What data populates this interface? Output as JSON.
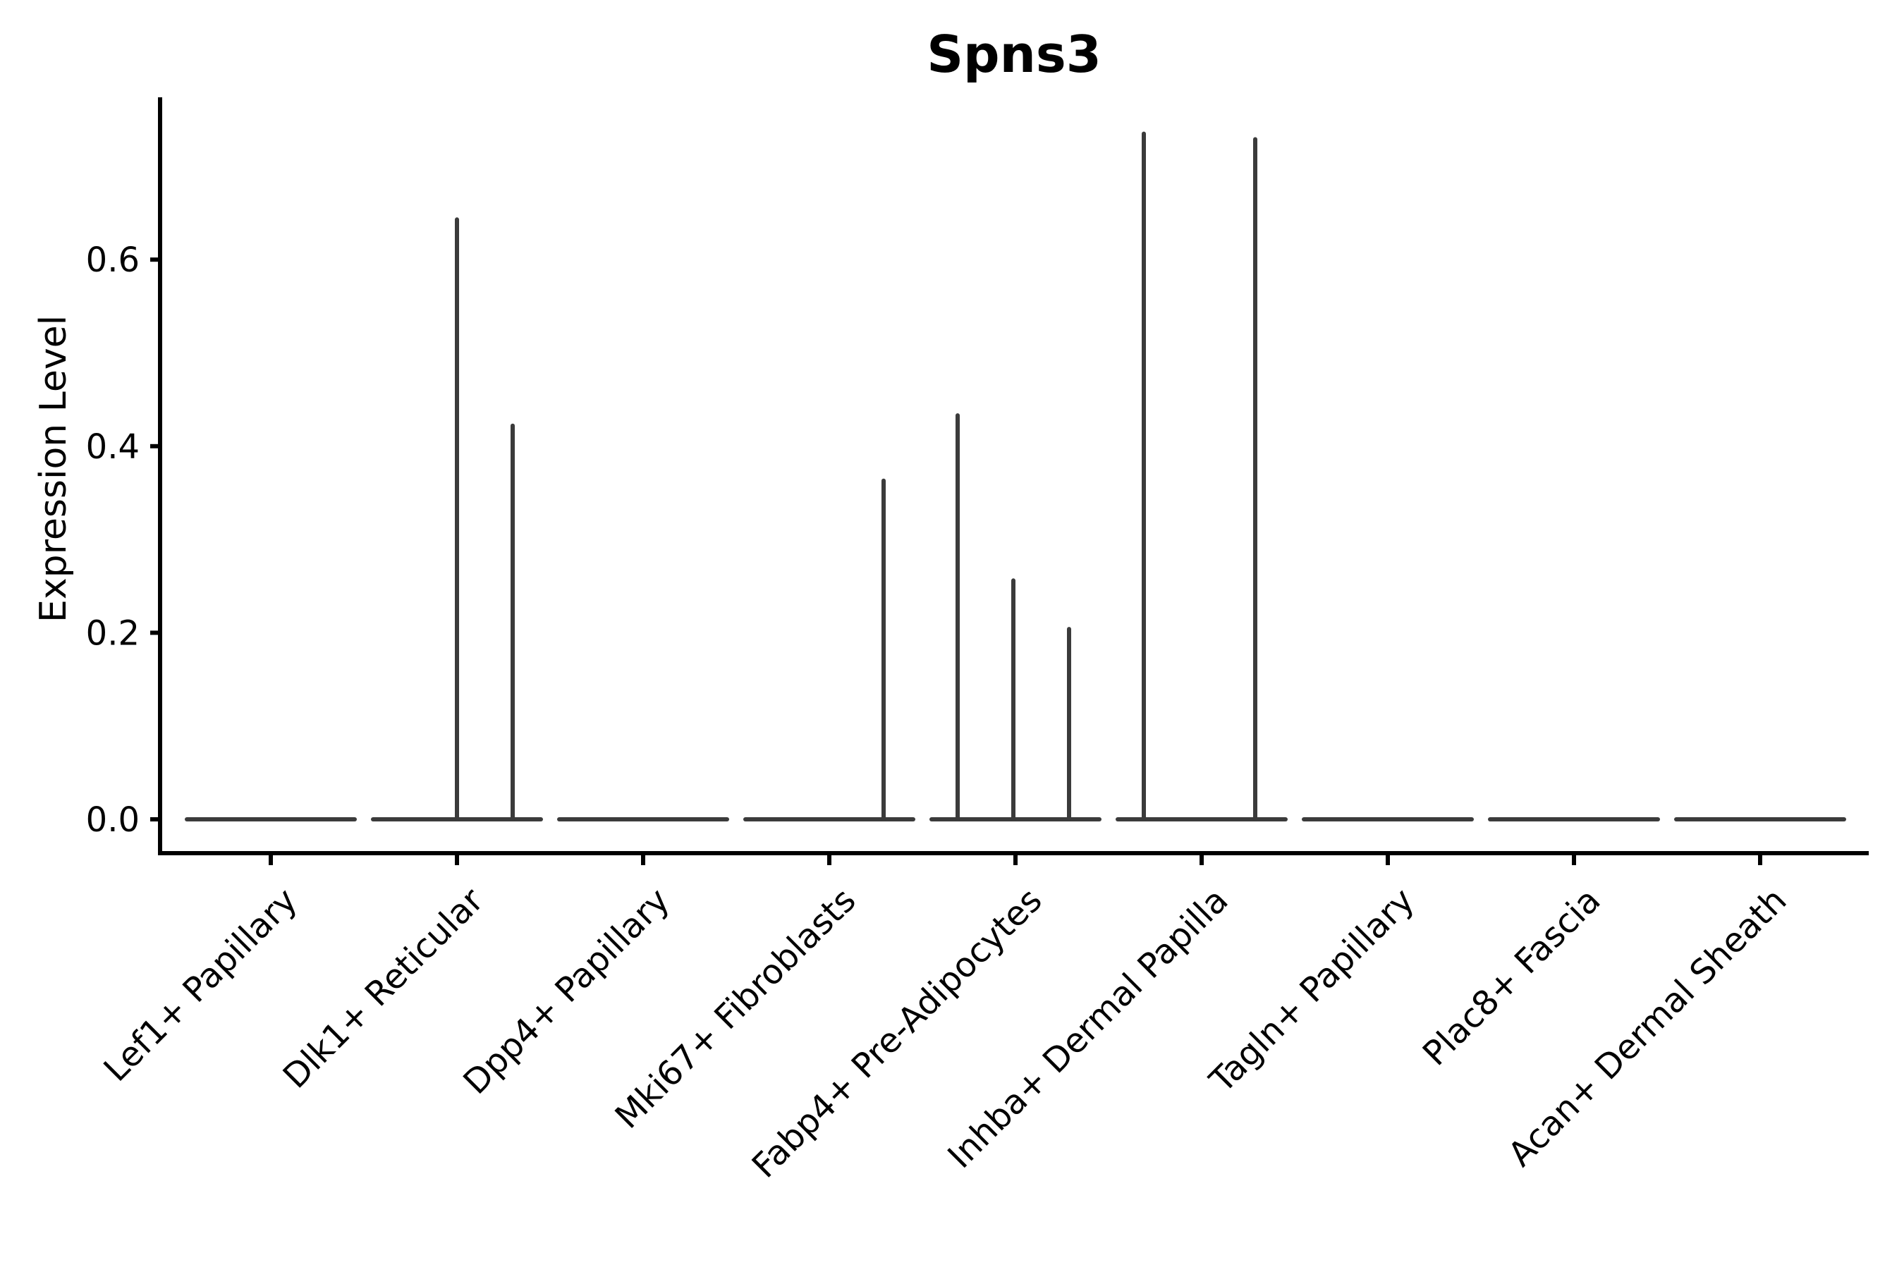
{
  "title": "Spns3",
  "chart_data": {
    "type": "violin",
    "title": "Spns3",
    "xlabel": "",
    "ylabel": "Expression Level",
    "ylim": [
      -0.037,
      0.771
    ],
    "yticks": [
      0.0,
      0.2,
      0.4,
      0.6
    ],
    "ytick_labels": [
      "0.0",
      "0.2",
      "0.4",
      "0.6"
    ],
    "grid": false,
    "legend": "none",
    "baseline_value": 0.0,
    "categories": [
      "Lef1+ Papillary",
      "Dlk1+ Reticular",
      "Dpp4+ Papillary",
      "Mki67+ Fibroblasts",
      "Fabp4+ Pre-Adipocytes",
      "Inhba+ Dermal Papilla",
      "Tagln+ Papillary",
      "Plac8+ Fascia",
      "Acan+ Dermal Sheath"
    ],
    "series": [
      {
        "name": "Lef1+ Papillary",
        "max_expression": 0.0,
        "spikes": []
      },
      {
        "name": "Dlk1+ Reticular",
        "max_expression": 0.643,
        "spikes": [
          {
            "x_offset": 0,
            "value": 0.643
          },
          {
            "x_offset": 79,
            "value": 0.422
          }
        ]
      },
      {
        "name": "Dpp4+ Papillary",
        "max_expression": 0.0,
        "spikes": []
      },
      {
        "name": "Mki67+ Fibroblasts",
        "max_expression": 0.363,
        "spikes": [
          {
            "x_offset": 77,
            "value": 0.363
          }
        ]
      },
      {
        "name": "Fabp4+ Pre-Adipocytes",
        "max_expression": 0.433,
        "spikes": [
          {
            "x_offset": -82,
            "value": 0.433
          },
          {
            "x_offset": -3,
            "value": 0.256
          },
          {
            "x_offset": 76,
            "value": 0.204
          }
        ]
      },
      {
        "name": "Inhba+ Dermal Papilla",
        "max_expression": 0.735,
        "spikes": [
          {
            "x_offset": -82,
            "value": 0.735
          },
          {
            "x_offset": 76,
            "value": 0.729
          }
        ]
      },
      {
        "name": "Tagln+ Papillary",
        "max_expression": 0.0,
        "spikes": []
      },
      {
        "name": "Plac8+ Fascia",
        "max_expression": 0.0,
        "spikes": []
      },
      {
        "name": "Acan+ Dermal Sheath",
        "max_expression": 0.0,
        "spikes": []
      }
    ]
  },
  "colors": {
    "background": "#ffffff",
    "axis": "#000000",
    "text": "#000000",
    "violin_stroke": "#3b3b3b"
  }
}
